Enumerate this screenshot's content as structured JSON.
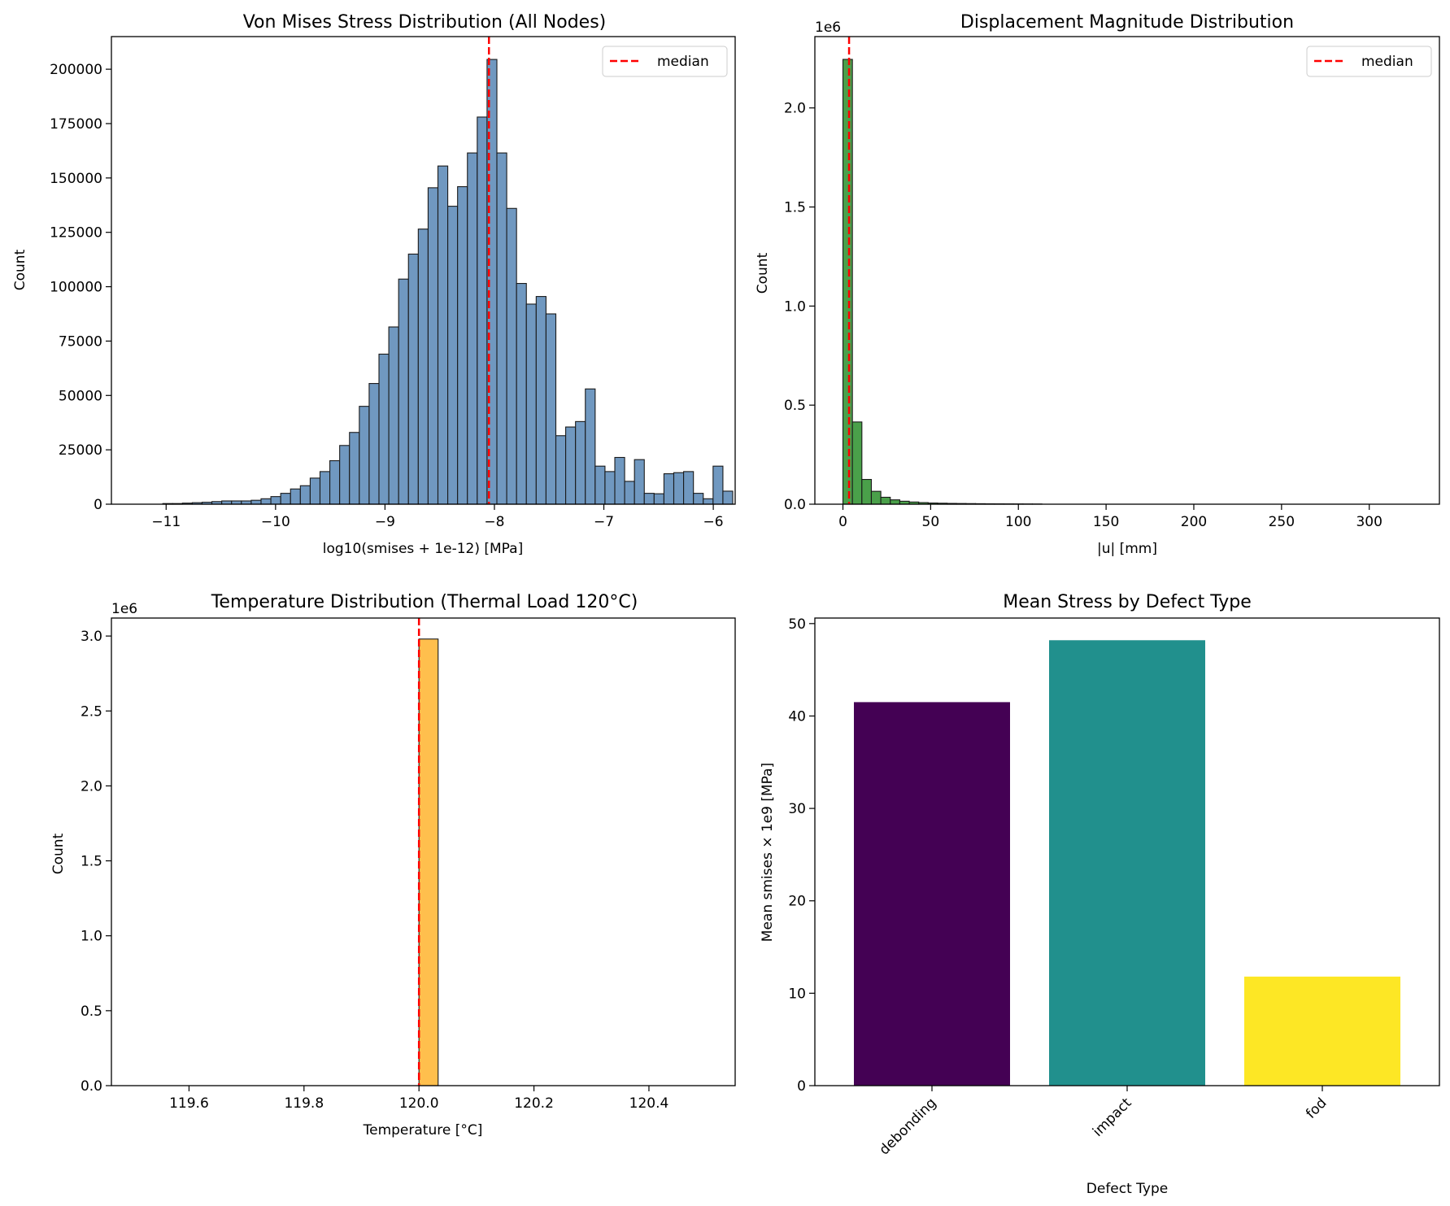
{
  "chart_data": [
    {
      "type": "bar",
      "title": "Von Mises Stress Distribution (All Nodes)",
      "xlabel": "log10(smises + 1e-12) [MPa]",
      "ylabel": "Count",
      "xlim": [
        -11.5,
        -5.8
      ],
      "ylim": [
        0,
        215000
      ],
      "xticks": [
        -11,
        -10,
        -9,
        -8,
        -7,
        -6
      ],
      "xtick_labels": [
        "−11",
        "−10",
        "−9",
        "−8",
        "−7",
        "−6"
      ],
      "yticks": [
        0,
        25000,
        50000,
        75000,
        100000,
        125000,
        150000,
        175000,
        200000
      ],
      "ytick_labels": [
        "0",
        "25000",
        "50000",
        "75000",
        "100000",
        "125000",
        "150000",
        "175000",
        "200000"
      ],
      "bins_start": -11.3,
      "bin_width": 0.0898,
      "counts": [
        0,
        0,
        0,
        300,
        300,
        500,
        700,
        900,
        1200,
        1500,
        1500,
        1500,
        1800,
        2500,
        3500,
        5000,
        7000,
        8500,
        12000,
        15000,
        20000,
        27000,
        33000,
        45000,
        55500,
        69000,
        81500,
        103500,
        115000,
        126500,
        145500,
        155500,
        137000,
        146000,
        161500,
        178000,
        204500,
        161500,
        136000,
        101500,
        92000,
        95500,
        87500,
        31500,
        35500,
        38000,
        53000,
        17500,
        15000,
        21500,
        10500,
        20500,
        5000,
        4800,
        14000,
        14500,
        15000,
        5000,
        2500,
        17500,
        6000
      ],
      "median": -8.05,
      "bar_color": "#7098c0",
      "legend": {
        "label": "median",
        "position": "upper right"
      }
    },
    {
      "type": "bar",
      "title": "Displacement Magnitude Distribution",
      "xlabel": "|u| [mm]",
      "ylabel": "Count",
      "offset_label": "1e6",
      "xlim": [
        -16,
        340
      ],
      "ylim": [
        0,
        2.36
      ],
      "xticks": [
        0,
        50,
        100,
        150,
        200,
        250,
        300
      ],
      "xtick_labels": [
        "0",
        "50",
        "100",
        "150",
        "200",
        "250",
        "300"
      ],
      "yticks": [
        0,
        0.5,
        1.0,
        1.5,
        2.0
      ],
      "ytick_labels": [
        "0.0",
        "0.5",
        "1.0",
        "1.5",
        "2.0"
      ],
      "bins_start": 0,
      "bin_width": 5.4,
      "counts": [
        2.245,
        0.415,
        0.125,
        0.065,
        0.035,
        0.022,
        0.015,
        0.011,
        0.008,
        0.006,
        0.005,
        0.004,
        0.0035,
        0.003,
        0.0025,
        0.002,
        0.0018,
        0.0016,
        0.0014,
        0.0012,
        0.001
      ],
      "median": 3.5,
      "bar_color": "#4aa04a",
      "legend": {
        "label": "median",
        "position": "upper right"
      }
    },
    {
      "type": "bar",
      "title": "Temperature Distribution (Thermal Load 120°C)",
      "xlabel": "Temperature [°C]",
      "ylabel": "Count",
      "offset_label": "1e6",
      "xlim": [
        119.465,
        120.55
      ],
      "ylim": [
        0,
        3.12
      ],
      "xticks": [
        119.6,
        119.8,
        120.0,
        120.2,
        120.4
      ],
      "xtick_labels": [
        "119.6",
        "119.8",
        "120.0",
        "120.2",
        "120.4"
      ],
      "yticks": [
        0,
        0.5,
        1.0,
        1.5,
        2.0,
        2.5,
        3.0
      ],
      "ytick_labels": [
        "0.0",
        "0.5",
        "1.0",
        "1.5",
        "2.0",
        "2.5",
        "3.0"
      ],
      "bars": [
        {
          "x0": 120.0,
          "x1": 120.0333,
          "value": 2.98
        }
      ],
      "median": 120.0,
      "bar_color": "#ffbf4d"
    },
    {
      "type": "bar",
      "title": "Mean Stress by Defect Type",
      "xlabel": "Defect Type",
      "ylabel": "Mean smises × 1e9 [MPa]",
      "categories": [
        "debonding",
        "impact",
        "fod"
      ],
      "values": [
        41.5,
        48.2,
        11.8
      ],
      "colors": [
        "#440154",
        "#21908d",
        "#fde725"
      ],
      "ylim": [
        0,
        50.6
      ],
      "yticks": [
        0,
        10,
        20,
        30,
        40,
        50
      ],
      "ytick_labels": [
        "0",
        "10",
        "20",
        "30",
        "40",
        "50"
      ]
    }
  ]
}
